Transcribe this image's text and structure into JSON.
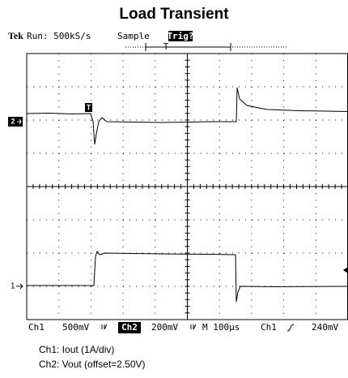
{
  "title": "Load Transient",
  "header": {
    "brand": "Tek",
    "run": "Run: 500kS/s",
    "mode": "Sample",
    "trigger_status": "Trig?"
  },
  "markers": {
    "ch2": "2",
    "ch1": "1",
    "trigger": "T"
  },
  "status": {
    "ch1_label": "Ch1",
    "ch1_scale": "500mV",
    "ch2_label": "Ch2",
    "ch2_scale": "200mV",
    "timebase": "M 100µs",
    "trig_source": "Ch1",
    "trig_level": "240mV"
  },
  "notes": [
    "Ch1: Iout (1A/div)",
    "Ch2: Vout (offset=2.50V)"
  ]
}
